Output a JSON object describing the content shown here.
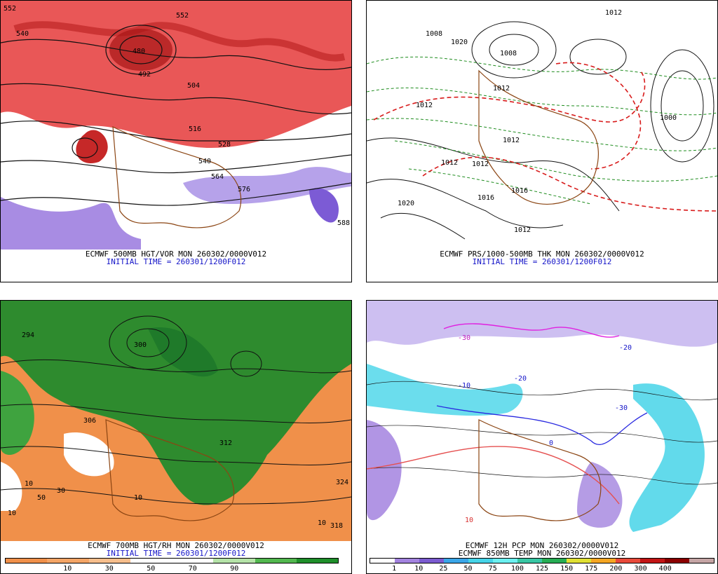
{
  "panels": [
    {
      "id": "p1",
      "captions": [
        "ECMWF 500MB HGT/VOR MON 260302/0000V012",
        "INITIAL TIME = 260301/1200F012"
      ],
      "labels": [
        "552",
        "540",
        "480",
        "492",
        "504",
        "516",
        "528",
        "540",
        "564",
        "576",
        "552",
        "588"
      ]
    },
    {
      "id": "p2",
      "captions": [
        "ECMWF PRS/1000-500MB THK MON 260302/0000V012",
        "INITIAL TIME = 260301/1200F012"
      ],
      "labels": [
        "1020",
        "1008",
        "1012",
        "1012",
        "1012",
        "1012",
        "1020",
        "1016",
        "1012",
        "1016",
        "1012",
        "1012",
        "1008",
        "1000"
      ]
    },
    {
      "id": "p3",
      "captions": [
        "ECMWF 700MB HGT/RH MON 260302/0000V012",
        "INITIAL TIME = 260301/1200F012"
      ],
      "labels": [
        "294",
        "300",
        "306",
        "312",
        "318",
        "324",
        "10",
        "10",
        "30",
        "10",
        "50",
        "10"
      ],
      "colorbar": {
        "colors": [
          "#f0904a",
          "#f4a566",
          "#f7be8c",
          "#ffffff",
          "#ffffff",
          "#b5e3a8",
          "#52b84f",
          "#1f8f2a"
        ],
        "labels": [
          "10",
          "30",
          "50",
          "70",
          "90"
        ]
      }
    },
    {
      "id": "p4",
      "captions": [
        "ECMWF 12H PCP MON 260302/0000V012",
        "ECMWF 850MB TEMP MON 260302/0000V012"
      ],
      "labels": [
        "-30",
        "-20",
        "-10",
        "0",
        "10",
        "-30",
        "-20"
      ],
      "colorbar": {
        "colors": [
          "#ffffff",
          "#a383df",
          "#7b5bd0",
          "#3aa6e8",
          "#46d4e8",
          "#6cf0f0",
          "#38c7a4",
          "#27ad54",
          "#e0e033",
          "#f5a623",
          "#e84a3a",
          "#c21515",
          "#8b0000",
          "#c5a5a5"
        ],
        "labels": [
          "1",
          "10",
          "25",
          "50",
          "75",
          "100",
          "125",
          "150",
          "175",
          "200",
          "300",
          "400"
        ]
      }
    }
  ]
}
